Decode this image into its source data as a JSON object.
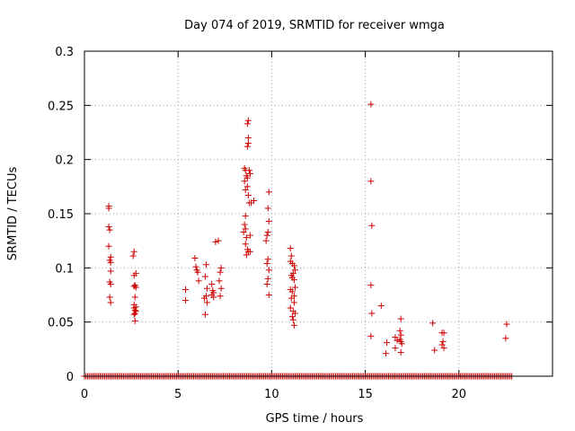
{
  "chart_data": {
    "type": "scatter",
    "title": "Day 074 of 2019, SRMTID for receiver wmga",
    "xlabel": "GPS time / hours",
    "ylabel": "SRMTID / TECUs",
    "xlim": [
      0,
      25
    ],
    "ylim": [
      0,
      0.3
    ],
    "xticks": [
      0,
      5,
      10,
      15,
      20
    ],
    "yticks": [
      0,
      0.05,
      0.1,
      0.15,
      0.2,
      0.25,
      0.3
    ],
    "xtick_labels": [
      "0",
      "5",
      "10",
      "15",
      "20"
    ],
    "ytick_labels": [
      "0",
      "0.05",
      "0.1",
      "0.15",
      "0.2",
      "0.25",
      "0.3"
    ],
    "grid": true,
    "marker": "+",
    "color": "#cc0000",
    "zero_baseline": {
      "x_start": 0.0,
      "x_end": 22.9,
      "step": 0.0833,
      "y": 0
    },
    "series": [
      {
        "name": "SRMTID",
        "points": [
          [
            1.3,
            0.157
          ],
          [
            1.3,
            0.155
          ],
          [
            1.3,
            0.138
          ],
          [
            1.35,
            0.135
          ],
          [
            1.3,
            0.12
          ],
          [
            1.4,
            0.11
          ],
          [
            1.35,
            0.107
          ],
          [
            1.4,
            0.105
          ],
          [
            1.4,
            0.097
          ],
          [
            1.35,
            0.087
          ],
          [
            1.4,
            0.085
          ],
          [
            1.35,
            0.073
          ],
          [
            1.4,
            0.068
          ],
          [
            2.65,
            0.115
          ],
          [
            2.6,
            0.111
          ],
          [
            2.75,
            0.095
          ],
          [
            2.65,
            0.093
          ],
          [
            2.7,
            0.084
          ],
          [
            2.65,
            0.083
          ],
          [
            2.75,
            0.082
          ],
          [
            2.7,
            0.073
          ],
          [
            2.65,
            0.066
          ],
          [
            2.75,
            0.064
          ],
          [
            2.65,
            0.063
          ],
          [
            2.7,
            0.061
          ],
          [
            2.75,
            0.06
          ],
          [
            2.7,
            0.058
          ],
          [
            2.65,
            0.057
          ],
          [
            2.7,
            0.051
          ],
          [
            5.4,
            0.08
          ],
          [
            5.4,
            0.07
          ],
          [
            5.9,
            0.109
          ],
          [
            5.95,
            0.101
          ],
          [
            6.0,
            0.098
          ],
          [
            6.05,
            0.096
          ],
          [
            6.1,
            0.088
          ],
          [
            6.5,
            0.103
          ],
          [
            6.45,
            0.092
          ],
          [
            6.55,
            0.081
          ],
          [
            6.5,
            0.074
          ],
          [
            6.4,
            0.072
          ],
          [
            6.55,
            0.068
          ],
          [
            6.45,
            0.057
          ],
          [
            6.8,
            0.085
          ],
          [
            6.85,
            0.079
          ],
          [
            6.9,
            0.077
          ],
          [
            6.8,
            0.075
          ],
          [
            6.9,
            0.073
          ],
          [
            7.0,
            0.124
          ],
          [
            7.15,
            0.125
          ],
          [
            7.3,
            0.1
          ],
          [
            7.25,
            0.096
          ],
          [
            7.2,
            0.088
          ],
          [
            7.3,
            0.081
          ],
          [
            7.25,
            0.074
          ],
          [
            8.55,
            0.192
          ],
          [
            8.6,
            0.19
          ],
          [
            8.65,
            0.185
          ],
          [
            8.7,
            0.183
          ],
          [
            8.55,
            0.18
          ],
          [
            8.6,
            0.172
          ],
          [
            8.75,
            0.236
          ],
          [
            8.7,
            0.233
          ],
          [
            8.75,
            0.22
          ],
          [
            8.75,
            0.215
          ],
          [
            8.7,
            0.212
          ],
          [
            8.8,
            0.19
          ],
          [
            8.85,
            0.187
          ],
          [
            8.7,
            0.175
          ],
          [
            8.75,
            0.167
          ],
          [
            8.8,
            0.16
          ],
          [
            8.9,
            0.16
          ],
          [
            9.05,
            0.162
          ],
          [
            8.6,
            0.148
          ],
          [
            8.55,
            0.14
          ],
          [
            8.6,
            0.136
          ],
          [
            8.5,
            0.133
          ],
          [
            8.65,
            0.128
          ],
          [
            8.6,
            0.122
          ],
          [
            8.7,
            0.117
          ],
          [
            8.75,
            0.115
          ],
          [
            8.65,
            0.112
          ],
          [
            8.85,
            0.13
          ],
          [
            8.85,
            0.115
          ],
          [
            9.85,
            0.17
          ],
          [
            9.8,
            0.155
          ],
          [
            9.85,
            0.143
          ],
          [
            9.8,
            0.133
          ],
          [
            9.75,
            0.13
          ],
          [
            9.7,
            0.125
          ],
          [
            9.8,
            0.108
          ],
          [
            9.75,
            0.104
          ],
          [
            9.85,
            0.098
          ],
          [
            9.8,
            0.09
          ],
          [
            9.75,
            0.085
          ],
          [
            9.85,
            0.075
          ],
          [
            11.0,
            0.118
          ],
          [
            11.05,
            0.111
          ],
          [
            11.0,
            0.106
          ],
          [
            11.1,
            0.104
          ],
          [
            11.2,
            0.102
          ],
          [
            11.25,
            0.098
          ],
          [
            11.15,
            0.095
          ],
          [
            11.05,
            0.093
          ],
          [
            11.1,
            0.091
          ],
          [
            11.2,
            0.089
          ],
          [
            11.0,
            0.08
          ],
          [
            11.1,
            0.078
          ],
          [
            11.25,
            0.082
          ],
          [
            11.2,
            0.074
          ],
          [
            11.05,
            0.072
          ],
          [
            11.2,
            0.068
          ],
          [
            11.0,
            0.063
          ],
          [
            11.15,
            0.06
          ],
          [
            11.25,
            0.058
          ],
          [
            11.1,
            0.055
          ],
          [
            11.15,
            0.052
          ],
          [
            11.2,
            0.047
          ],
          [
            15.3,
            0.251
          ],
          [
            15.3,
            0.18
          ],
          [
            15.35,
            0.139
          ],
          [
            15.3,
            0.084
          ],
          [
            15.35,
            0.058
          ],
          [
            15.3,
            0.037
          ],
          [
            15.85,
            0.065
          ],
          [
            16.15,
            0.031
          ],
          [
            16.1,
            0.021
          ],
          [
            16.6,
            0.036
          ],
          [
            16.7,
            0.033
          ],
          [
            16.6,
            0.026
          ],
          [
            16.9,
            0.053
          ],
          [
            16.85,
            0.042
          ],
          [
            16.9,
            0.038
          ],
          [
            16.85,
            0.034
          ],
          [
            16.9,
            0.032
          ],
          [
            16.95,
            0.03
          ],
          [
            16.9,
            0.022
          ],
          [
            18.6,
            0.049
          ],
          [
            18.7,
            0.024
          ],
          [
            19.1,
            0.04
          ],
          [
            19.2,
            0.04
          ],
          [
            19.15,
            0.032
          ],
          [
            19.1,
            0.029
          ],
          [
            19.2,
            0.026
          ],
          [
            22.55,
            0.048
          ],
          [
            22.5,
            0.035
          ]
        ]
      }
    ]
  }
}
